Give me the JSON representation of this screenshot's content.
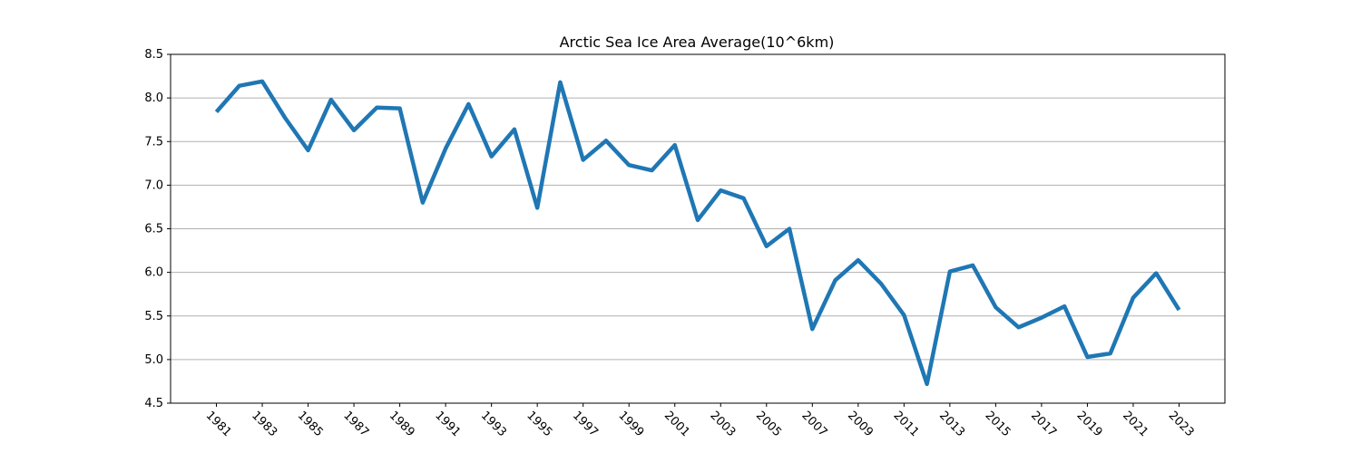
{
  "chart_data": {
    "type": "line",
    "title": "Arctic Sea Ice Area Average(10^6km)",
    "xlabel": "",
    "ylabel": "",
    "ylim": [
      4.5,
      8.5
    ],
    "yticks": [
      "4.5",
      "5.0",
      "5.5",
      "6.0",
      "6.5",
      "7.0",
      "7.5",
      "8.0",
      "8.5"
    ],
    "xticks": [
      "1981",
      "1983",
      "1985",
      "1987",
      "1989",
      "1991",
      "1993",
      "1995",
      "1997",
      "1999",
      "2001",
      "2003",
      "2005",
      "2007",
      "2009",
      "2011",
      "2013",
      "2015",
      "2017",
      "2019",
      "2021",
      "2023"
    ],
    "grid": "horizontal",
    "line_color": "#1f77b4",
    "x": [
      1981,
      1982,
      1983,
      1984,
      1985,
      1986,
      1987,
      1988,
      1989,
      1990,
      1991,
      1992,
      1993,
      1994,
      1995,
      1996,
      1997,
      1998,
      1999,
      2000,
      2001,
      2002,
      2003,
      2004,
      2005,
      2006,
      2007,
      2008,
      2009,
      2010,
      2011,
      2012,
      2013,
      2014,
      2015,
      2016,
      2017,
      2018,
      2019,
      2020,
      2021,
      2022,
      2023
    ],
    "values": [
      7.84,
      8.14,
      8.19,
      7.77,
      7.4,
      7.98,
      7.63,
      7.89,
      7.88,
      6.8,
      7.42,
      7.93,
      7.33,
      7.64,
      6.74,
      8.18,
      7.29,
      7.51,
      7.23,
      7.17,
      7.46,
      6.6,
      6.94,
      6.85,
      6.3,
      6.5,
      5.35,
      5.91,
      6.14,
      5.87,
      5.51,
      4.72,
      6.01,
      6.08,
      5.6,
      5.37,
      5.48,
      5.61,
      5.03,
      5.07,
      5.71,
      5.99,
      5.57
    ]
  }
}
